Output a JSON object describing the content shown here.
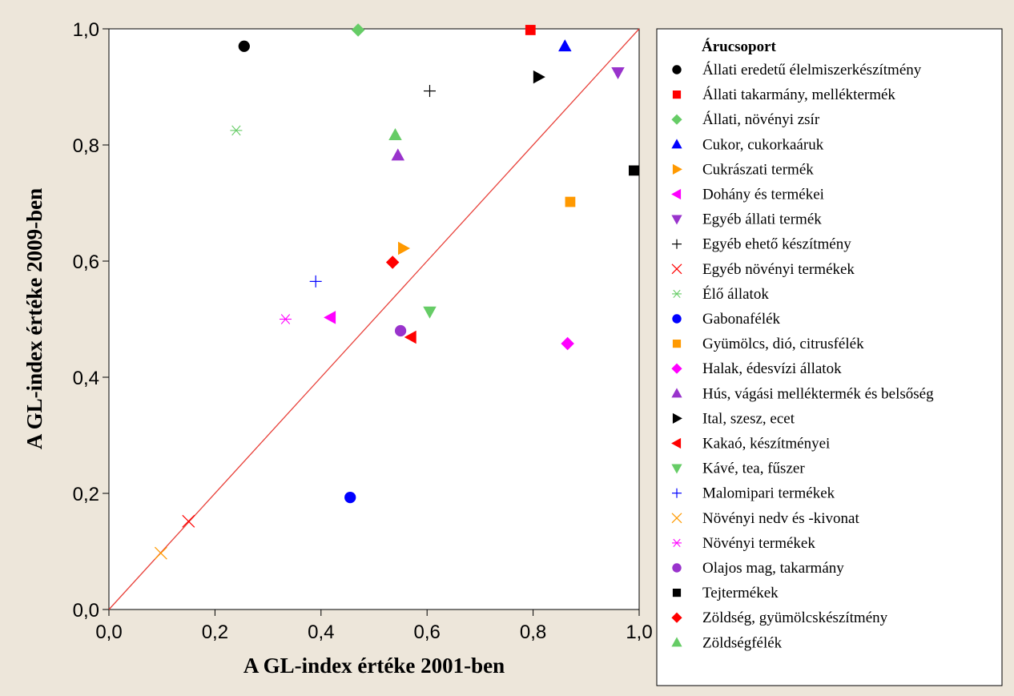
{
  "chart_data": {
    "type": "scatter",
    "xlabel": "A GL-index értéke 2001-ben",
    "ylabel": "A GL-index értéke 2009-ben",
    "xlim": [
      0,
      1
    ],
    "ylim": [
      0,
      1
    ],
    "x_ticks": [
      "0,0",
      "0,2",
      "0,4",
      "0,6",
      "0,8",
      "1,0"
    ],
    "y_ticks": [
      "0,0",
      "0,2",
      "0,4",
      "0,6",
      "0,8",
      "1,0"
    ],
    "reference_line": {
      "from": [
        0,
        0
      ],
      "to": [
        1,
        1
      ],
      "color": "#e8413a"
    },
    "grid": false,
    "legend": {
      "title": "Árucsoport",
      "placement": "right"
    },
    "series": [
      {
        "name": "Állati eredetű élelmiszerkészítmény",
        "marker": "circle",
        "color": "#000000",
        "points": [
          [
            0.255,
            0.97
          ]
        ]
      },
      {
        "name": "Állati takarmány, melléktermék",
        "marker": "square",
        "color": "#ff0000",
        "points": [
          [
            0.795,
            0.998
          ]
        ]
      },
      {
        "name": "Állati, növényi zsír",
        "marker": "diamond",
        "color": "#66cc66",
        "points": [
          [
            0.47,
            0.998
          ]
        ]
      },
      {
        "name": "Cukor, cukorkaáruk",
        "marker": "triangle-up",
        "color": "#0000ff",
        "points": [
          [
            0.86,
            0.97
          ]
        ]
      },
      {
        "name": "Cukrászati termék",
        "marker": "triangle-right",
        "color": "#ff9900",
        "points": [
          [
            0.555,
            0.622
          ]
        ]
      },
      {
        "name": "Dohány és termékei",
        "marker": "triangle-left",
        "color": "#ff00ff",
        "points": [
          [
            0.418,
            0.503
          ]
        ]
      },
      {
        "name": "Egyéb állati termék",
        "marker": "triangle-down",
        "color": "#9933cc",
        "points": [
          [
            0.96,
            0.925
          ]
        ]
      },
      {
        "name": "Egyéb ehető készítmény",
        "marker": "plus",
        "color": "#000000",
        "points": [
          [
            0.605,
            0.893
          ]
        ]
      },
      {
        "name": "Egyéb növényi termékek",
        "marker": "x",
        "color": "#ff0000",
        "points": [
          [
            0.15,
            0.152
          ]
        ]
      },
      {
        "name": "Élő állatok",
        "marker": "asterisk",
        "color": "#66cc66",
        "points": [
          [
            0.24,
            0.825
          ]
        ]
      },
      {
        "name": "Gabonafélék",
        "marker": "circle",
        "color": "#0000ff",
        "points": [
          [
            0.455,
            0.193
          ]
        ]
      },
      {
        "name": "Gyümölcs, dió, citrusfélék",
        "marker": "square",
        "color": "#ff9900",
        "points": [
          [
            0.87,
            0.702
          ]
        ]
      },
      {
        "name": "Halak, édesvízi állatok",
        "marker": "diamond",
        "color": "#ff00ff",
        "points": [
          [
            0.865,
            0.458
          ]
        ]
      },
      {
        "name": "Hús, vágási melléktermék és belsőség",
        "marker": "triangle-up",
        "color": "#9933cc",
        "points": [
          [
            0.545,
            0.782
          ]
        ]
      },
      {
        "name": "Ital, szesz, ecet",
        "marker": "triangle-right",
        "color": "#000000",
        "points": [
          [
            0.81,
            0.917
          ]
        ]
      },
      {
        "name": "Kakaó, készítményei",
        "marker": "triangle-left",
        "color": "#ff0000",
        "points": [
          [
            0.57,
            0.469
          ]
        ]
      },
      {
        "name": "Kávé, tea, fűszer",
        "marker": "triangle-down",
        "color": "#66cc66",
        "points": [
          [
            0.605,
            0.513
          ]
        ]
      },
      {
        "name": "Malomipari termékek",
        "marker": "plus",
        "color": "#0000ff",
        "points": [
          [
            0.39,
            0.565
          ]
        ]
      },
      {
        "name": "Növényi nedv és -kivonat",
        "marker": "x",
        "color": "#ff9900",
        "points": [
          [
            0.098,
            0.097
          ]
        ]
      },
      {
        "name": "Növényi termékek",
        "marker": "asterisk",
        "color": "#ff00ff",
        "points": [
          [
            0.333,
            0.5
          ]
        ]
      },
      {
        "name": "Olajos mag, takarmány",
        "marker": "circle",
        "color": "#9933cc",
        "points": [
          [
            0.55,
            0.48
          ]
        ]
      },
      {
        "name": "Tejtermékek",
        "marker": "square",
        "color": "#000000",
        "points": [
          [
            0.99,
            0.756
          ]
        ]
      },
      {
        "name": "Zöldség, gyümölcskészítmény",
        "marker": "diamond",
        "color": "#ff0000",
        "points": [
          [
            0.535,
            0.598
          ]
        ]
      },
      {
        "name": "Zöldségfélék",
        "marker": "triangle-up",
        "color": "#66cc66",
        "points": [
          [
            0.54,
            0.817
          ]
        ]
      }
    ]
  }
}
